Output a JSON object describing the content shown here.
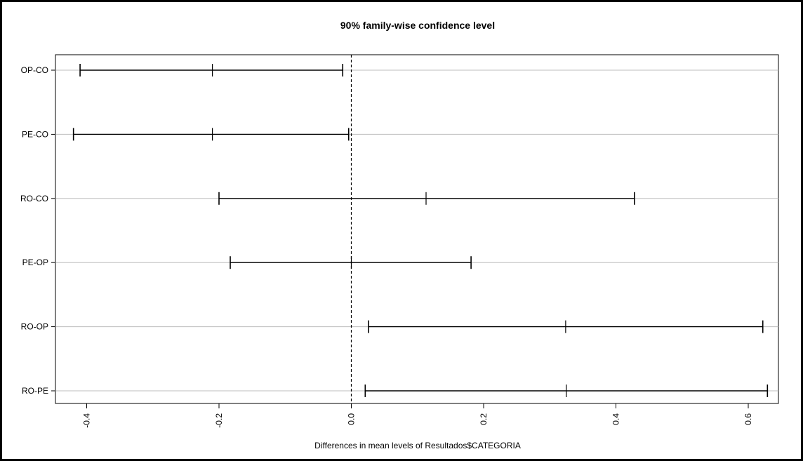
{
  "chart_data": {
    "type": "interval",
    "title": "90% family-wise confidence level",
    "xlabel": "Differences in mean levels of Resultados$CATEGORIA",
    "xlim": [
      -0.46,
      0.67
    ],
    "xticks": [
      -0.4,
      -0.2,
      0.0,
      0.2,
      0.4,
      0.6
    ],
    "xtick_labels": [
      "-0.4",
      "-0.2",
      "0.0",
      "0.2",
      "0.4",
      "0.6"
    ],
    "reference_line": 0.0,
    "grid": "horizontal",
    "comparisons": [
      {
        "label": "OP-CO",
        "lwr": -0.41,
        "diff": -0.21,
        "upr": -0.013
      },
      {
        "label": "PE-CO",
        "lwr": -0.42,
        "diff": -0.21,
        "upr": -0.004
      },
      {
        "label": "RO-CO",
        "lwr": -0.2,
        "diff": 0.113,
        "upr": 0.428
      },
      {
        "label": "PE-OP",
        "lwr": -0.183,
        "diff": 0.0,
        "upr": 0.181
      },
      {
        "label": "RO-OP",
        "lwr": 0.026,
        "diff": 0.324,
        "upr": 0.622
      },
      {
        "label": "RO-PE",
        "lwr": 0.021,
        "diff": 0.325,
        "upr": 0.629
      }
    ]
  }
}
